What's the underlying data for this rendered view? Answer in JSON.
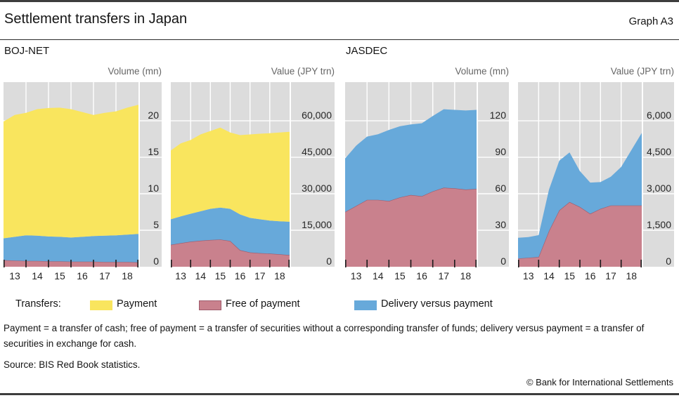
{
  "header": {
    "title": "Settlement transfers in Japan",
    "graph_label": "Graph A3"
  },
  "panels": {
    "left": "BOJ-NET",
    "right": "JASDEC"
  },
  "legend": {
    "title": "Transfers:",
    "items": [
      {
        "label": "Payment",
        "color_key": "payment"
      },
      {
        "label": "Free of payment",
        "color_key": "free_of_payment"
      },
      {
        "label": "Delivery versus payment",
        "color_key": "delivery_versus_payment"
      }
    ]
  },
  "colors": {
    "payment": "#f9e55e",
    "free_of_payment": "#c9818d",
    "free_of_payment_edge": "#9e5b6c",
    "delivery_versus_payment": "#67a9da",
    "plot_background": "#dcdcdc",
    "gridline": "#ffffff",
    "tick": "#1a1a1a",
    "axis_text": "#262626"
  },
  "footnote": "Payment = a transfer of cash; free of payment = a transfer of securities without a corresponding transfer of funds; delivery versus payment = a transfer of securities in exchange for cash.",
  "source": "Source: BIS Red Book statistics.",
  "copyright": "© Bank for International Settlements",
  "chart_data": [
    {
      "id": "boj-net-volume",
      "group": "BOJ-NET",
      "title": "Volume (mn)",
      "type": "area",
      "stacked": true,
      "stack_order": "bottom-to-top",
      "grid": true,
      "x": [
        13,
        13.5,
        14,
        14.5,
        15,
        15.5,
        16,
        16.5,
        17,
        17.5,
        18,
        18.5,
        19
      ],
      "xlim": [
        13,
        19
      ],
      "xtick_labels": [
        "13",
        "14",
        "15",
        "16",
        "17",
        "18"
      ],
      "ylim": [
        0,
        25.3
      ],
      "yticks": [
        0,
        5,
        10,
        15,
        20
      ],
      "ytick_labels": [
        "0",
        "5",
        "10",
        "15",
        "20"
      ],
      "series": [
        {
          "name": "Free of payment",
          "color_key": "free_of_payment",
          "values": [
            0.9,
            0.85,
            0.8,
            0.8,
            0.75,
            0.75,
            0.7,
            0.7,
            0.7,
            0.65,
            0.65,
            0.65,
            0.6
          ]
        },
        {
          "name": "Delivery versus payment",
          "color_key": "delivery_versus_payment",
          "values": [
            3.0,
            3.25,
            3.5,
            3.45,
            3.4,
            3.35,
            3.3,
            3.4,
            3.5,
            3.6,
            3.65,
            3.75,
            3.9
          ]
        },
        {
          "name": "Payment",
          "color_key": "payment",
          "values": [
            16.0,
            16.7,
            16.8,
            17.35,
            17.6,
            17.7,
            17.6,
            17.1,
            16.6,
            16.85,
            17.0,
            17.4,
            17.7
          ]
        }
      ]
    },
    {
      "id": "boj-net-value",
      "group": "BOJ-NET",
      "title": "Value (JPY trn)",
      "type": "area",
      "stacked": true,
      "stack_order": "bottom-to-top",
      "grid": true,
      "x": [
        13,
        13.5,
        14,
        14.5,
        15,
        15.5,
        16,
        16.5,
        17,
        17.5,
        18,
        18.5,
        19
      ],
      "xlim": [
        13,
        19
      ],
      "xtick_labels": [
        "13",
        "14",
        "15",
        "16",
        "17",
        "18"
      ],
      "ylim": [
        0,
        75900
      ],
      "yticks": [
        0,
        15000,
        30000,
        45000,
        60000
      ],
      "ytick_labels": [
        "0",
        "15,000",
        "30,000",
        "45,000",
        "60,000"
      ],
      "series": [
        {
          "name": "Free of payment",
          "color_key": "free_of_payment",
          "values": [
            9000,
            9700,
            10300,
            10700,
            11000,
            11200,
            10600,
            6800,
            5900,
            5600,
            5400,
            5100,
            4800
          ]
        },
        {
          "name": "Delivery versus payment",
          "color_key": "delivery_versus_payment",
          "values": [
            10500,
            11000,
            11500,
            12100,
            12800,
            13100,
            13200,
            14700,
            14200,
            13900,
            13600,
            13600,
            13700
          ]
        },
        {
          "name": "Payment",
          "color_key": "payment",
          "values": [
            28300,
            30000,
            30300,
            31600,
            32000,
            32900,
            31400,
            32600,
            34300,
            35200,
            35900,
            36500,
            37000
          ]
        }
      ]
    },
    {
      "id": "jasdec-volume",
      "group": "JASDEC",
      "title": "Volume (mn)",
      "type": "area",
      "stacked": true,
      "stack_order": "bottom-to-top",
      "grid": true,
      "x": [
        13,
        13.5,
        14,
        14.5,
        15,
        15.5,
        16,
        16.5,
        17,
        17.5,
        18,
        18.5,
        19
      ],
      "xlim": [
        13,
        19
      ],
      "xtick_labels": [
        "13",
        "14",
        "15",
        "16",
        "17",
        "18"
      ],
      "ylim": [
        0,
        151.8
      ],
      "yticks": [
        0,
        30,
        60,
        90,
        120
      ],
      "ytick_labels": [
        "0",
        "30",
        "60",
        "90",
        "120"
      ],
      "series": [
        {
          "name": "Free of payment",
          "color_key": "free_of_payment",
          "values": [
            45,
            50,
            55,
            55,
            54,
            57,
            59,
            58,
            62,
            65,
            64.5,
            63.5,
            64
          ]
        },
        {
          "name": "Delivery versus payment",
          "color_key": "delivery_versus_payment",
          "values": [
            44,
            49.5,
            52,
            54,
            58.5,
            58.5,
            58,
            60,
            62,
            64.5,
            64.5,
            65,
            65
          ]
        },
        {
          "name": "Payment",
          "color_key": "payment",
          "values": [
            0,
            0,
            0,
            0,
            0,
            0,
            0,
            0,
            0,
            0,
            0,
            0,
            0
          ]
        }
      ]
    },
    {
      "id": "jasdec-value",
      "group": "JASDEC",
      "title": "Value (JPY trn)",
      "type": "area",
      "stacked": true,
      "stack_order": "bottom-to-top",
      "grid": true,
      "x": [
        13,
        13.5,
        14,
        14.5,
        15,
        15.5,
        16,
        16.5,
        17,
        17.5,
        18,
        18.5,
        19
      ],
      "xlim": [
        13,
        19
      ],
      "xtick_labels": [
        "13",
        "14",
        "15",
        "16",
        "17",
        "18"
      ],
      "ylim": [
        0,
        7590
      ],
      "yticks": [
        0,
        1500,
        3000,
        4500,
        6000
      ],
      "ytick_labels": [
        "0",
        "1,500",
        "3,000",
        "4,500",
        "6,000"
      ],
      "series": [
        {
          "name": "Free of payment",
          "color_key": "free_of_payment",
          "values": [
            340,
            370,
            400,
            1470,
            2320,
            2660,
            2460,
            2180,
            2380,
            2520,
            2520,
            2520,
            2520
          ]
        },
        {
          "name": "Delivery versus payment",
          "color_key": "delivery_versus_payment",
          "values": [
            850,
            850,
            900,
            1700,
            2040,
            2040,
            1470,
            1280,
            1100,
            1180,
            1580,
            2280,
            2980
          ]
        },
        {
          "name": "Payment",
          "color_key": "payment",
          "values": [
            0,
            0,
            0,
            0,
            0,
            0,
            0,
            0,
            0,
            0,
            0,
            0,
            0
          ]
        }
      ]
    }
  ]
}
